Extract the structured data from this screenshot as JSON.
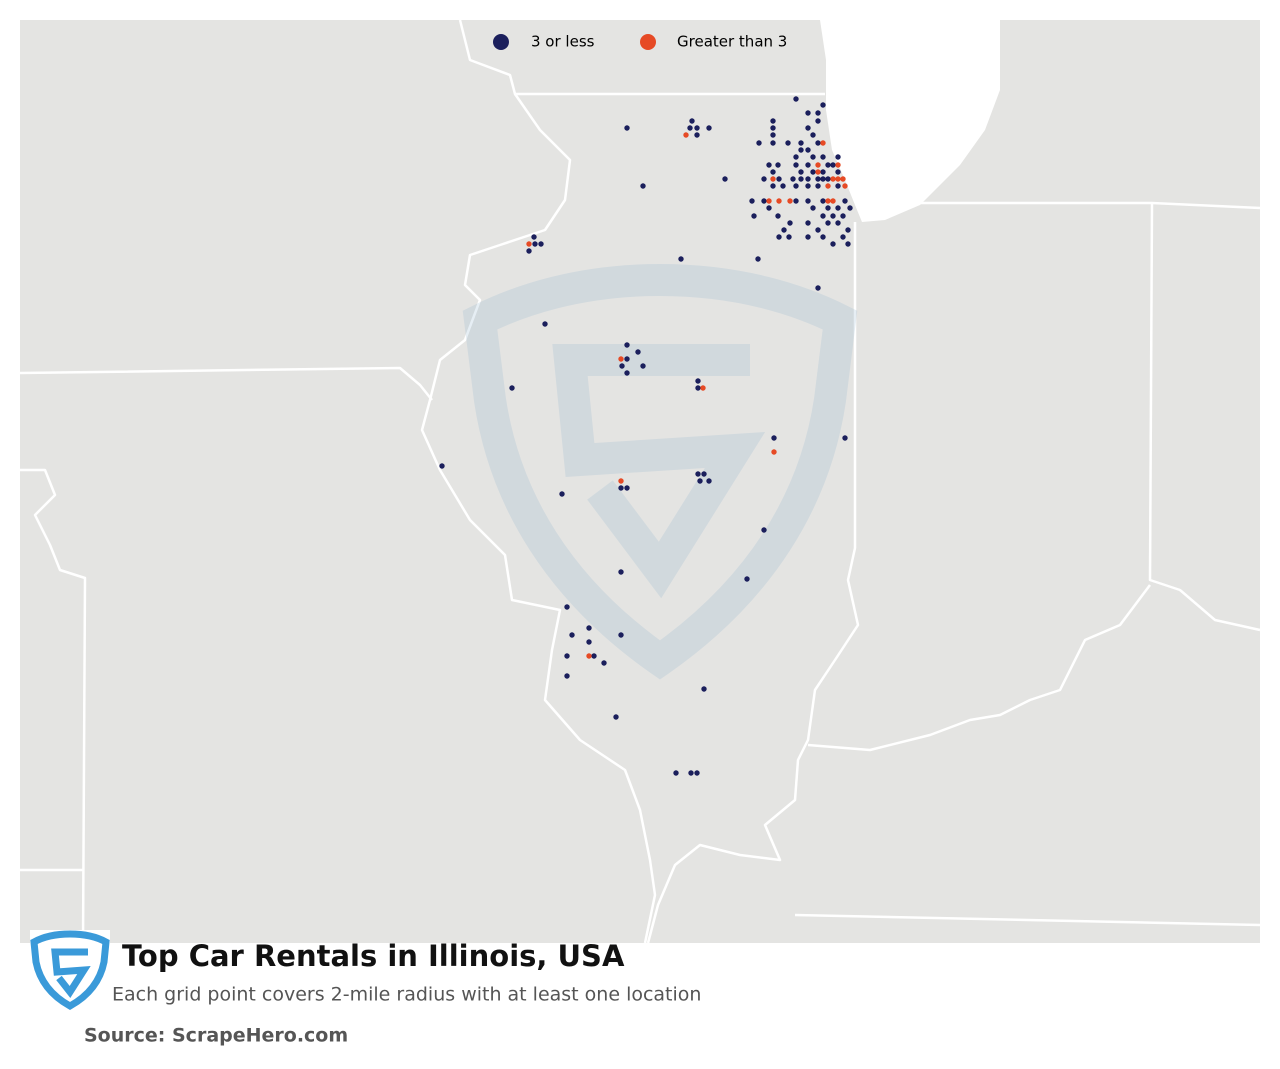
{
  "legend": {
    "items": [
      {
        "label": "3 or less",
        "color": "#1b1f5c"
      },
      {
        "label": "Greater than 3",
        "color": "#e64a25"
      }
    ]
  },
  "title": "Top Car Rentals in Illinois, USA",
  "subtitle": "Each grid point covers 2-mile radius with at least one location",
  "source": "Source: ScrapeHero.com"
}
